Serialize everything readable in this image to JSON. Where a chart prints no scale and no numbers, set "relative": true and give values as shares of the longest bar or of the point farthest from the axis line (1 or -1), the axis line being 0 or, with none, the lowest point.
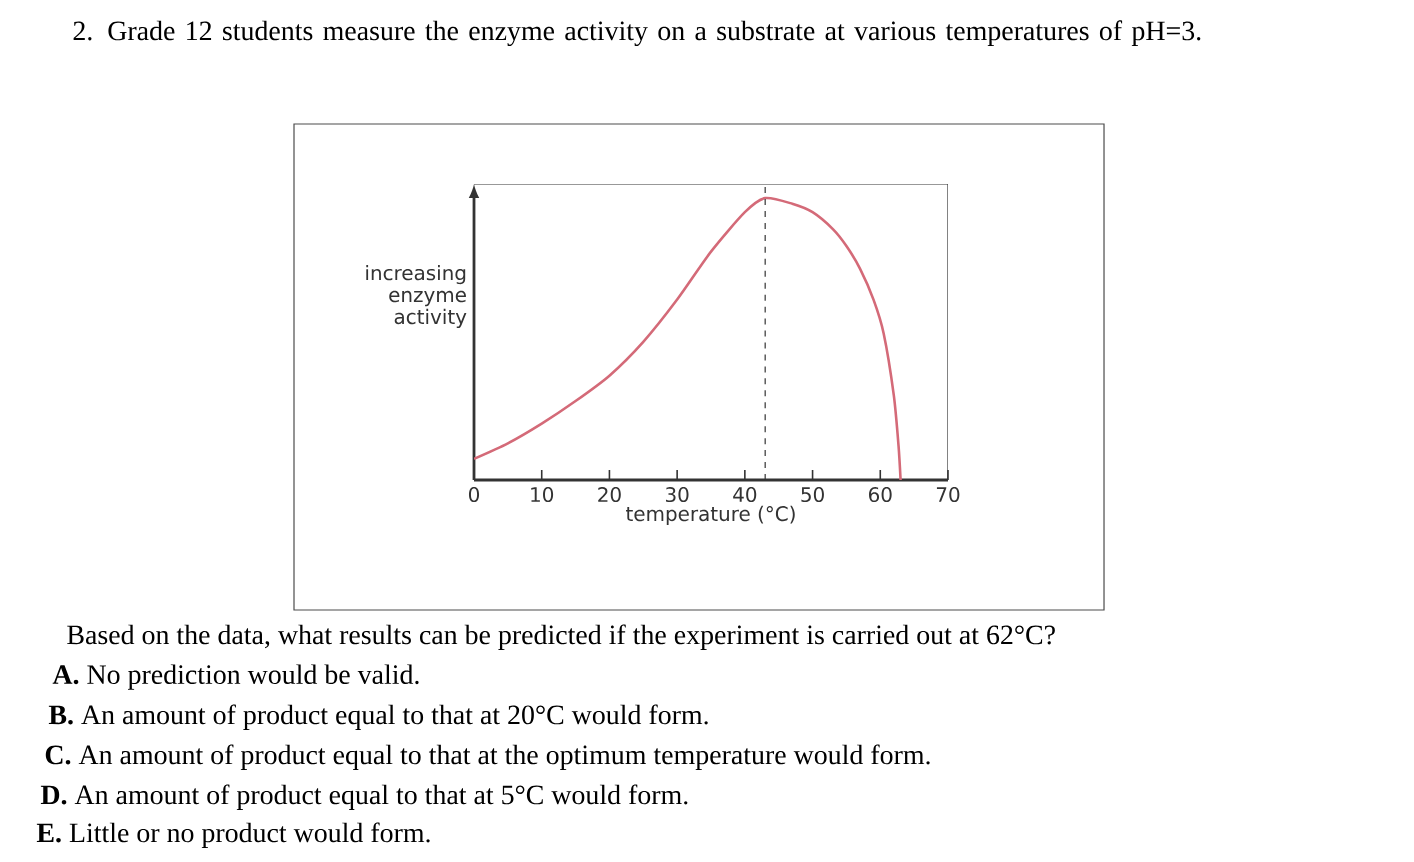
{
  "chart_data": {
    "type": "line",
    "title": "2. Grade 12 students measure the enzyme activity on a substrate at various temperatures of pH=3.",
    "xlabel": "temperature (°C)",
    "ylabel": "increasing enzyme activity",
    "relative": true,
    "xlim": [
      0,
      70
    ],
    "xticks": [
      0,
      10,
      20,
      30,
      40,
      50,
      60,
      70
    ],
    "marker": "none",
    "line_style": "solid",
    "series": [
      {
        "color": "#d46a78",
        "x": [
          0,
          5,
          10,
          15,
          20,
          25,
          30,
          35,
          40,
          43,
          47,
          50,
          53,
          55,
          57,
          59,
          60.5,
          62,
          62.7,
          63
        ],
        "values": [
          0.075,
          0.13,
          0.2,
          0.28,
          0.37,
          0.49,
          0.64,
          0.81,
          0.95,
          1.0,
          0.98,
          0.95,
          0.89,
          0.83,
          0.75,
          0.64,
          0.52,
          0.3,
          0.12,
          0
        ]
      }
    ],
    "ref_lines": [
      {
        "axis": "x",
        "value": 43,
        "line_style": "dashed",
        "color": "#333333"
      }
    ],
    "annotations": [
      "Based on the data, what results can be predicted if the experiment is carried out at 62°C?",
      "**A.** No prediction would be valid.",
      "**B.** An amount of product equal to that at 20°C would form.",
      "**C.** An amount of product equal to that at the optimum temperature would form.",
      "**D.** An amount of product equal to that at 5°C would form.",
      "**E.** Little or no product would form."
    ]
  }
}
